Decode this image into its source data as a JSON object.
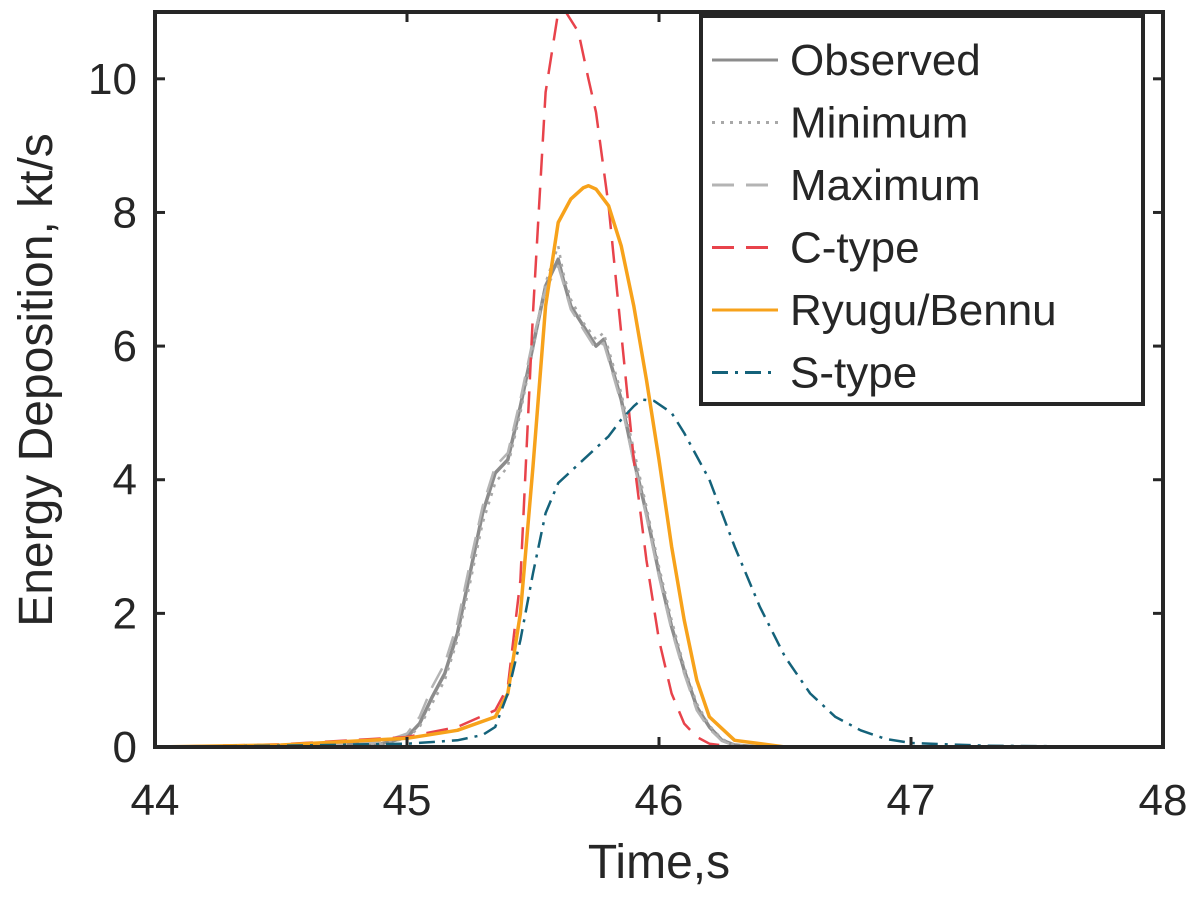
{
  "chart_data": {
    "type": "line",
    "title": "",
    "xlabel": "Time,s",
    "ylabel": "Energy Deposition, kt/s",
    "xlim": [
      44,
      48
    ],
    "ylim": [
      0,
      11
    ],
    "xticks": [
      44,
      45,
      46,
      47,
      48
    ],
    "yticks": [
      0,
      2,
      4,
      6,
      8,
      10
    ],
    "xtick_labels": [
      "44",
      "45",
      "46",
      "47",
      "48"
    ],
    "ytick_labels": [
      "0",
      "2",
      "4",
      "6",
      "8",
      "10"
    ],
    "grid": false,
    "legend_position": "top-right",
    "series": [
      {
        "name": "Observed",
        "color": "#8c8c8c",
        "style": "solid",
        "x": [
          44.0,
          44.5,
          44.8,
          44.9,
          45.0,
          45.05,
          45.1,
          45.15,
          45.2,
          45.25,
          45.3,
          45.35,
          45.4,
          45.45,
          45.5,
          45.55,
          45.6,
          45.62,
          45.65,
          45.7,
          45.75,
          45.78,
          45.8,
          45.85,
          45.9,
          45.95,
          46.0,
          46.05,
          46.1,
          46.15,
          46.2,
          46.25,
          46.3,
          46.4,
          48.0
        ],
        "y": [
          0.0,
          0.0,
          0.05,
          0.05,
          0.15,
          0.35,
          0.75,
          1.1,
          1.7,
          2.6,
          3.5,
          4.1,
          4.3,
          5.1,
          6.0,
          6.9,
          7.3,
          7.0,
          6.6,
          6.3,
          6.0,
          6.1,
          5.85,
          5.2,
          4.3,
          3.5,
          2.6,
          1.8,
          1.15,
          0.6,
          0.3,
          0.1,
          0.03,
          0.0,
          0.0
        ]
      },
      {
        "name": "Minimum",
        "color": "#a8a8a8",
        "style": "dotted",
        "x": [
          44.0,
          44.5,
          44.8,
          44.9,
          45.0,
          45.05,
          45.1,
          45.15,
          45.2,
          45.25,
          45.3,
          45.35,
          45.4,
          45.45,
          45.5,
          45.55,
          45.6,
          45.62,
          45.65,
          45.7,
          45.75,
          45.78,
          45.8,
          45.85,
          45.9,
          45.95,
          46.0,
          46.05,
          46.1,
          46.15,
          46.2,
          46.25,
          46.3,
          46.4,
          48.0
        ],
        "y": [
          0.0,
          0.0,
          0.04,
          0.05,
          0.13,
          0.3,
          0.65,
          1.0,
          1.6,
          2.45,
          3.35,
          3.95,
          4.2,
          5.0,
          5.95,
          6.95,
          7.5,
          7.1,
          6.7,
          6.35,
          6.1,
          6.2,
          5.95,
          5.3,
          4.45,
          3.6,
          2.7,
          1.9,
          1.2,
          0.65,
          0.32,
          0.12,
          0.03,
          0.0,
          0.0
        ]
      },
      {
        "name": "Maximum",
        "color": "#b4b4b4",
        "style": "dashed",
        "x": [
          44.0,
          44.5,
          44.8,
          44.9,
          45.0,
          45.05,
          45.1,
          45.15,
          45.2,
          45.25,
          45.3,
          45.35,
          45.4,
          45.45,
          45.5,
          45.55,
          45.6,
          45.62,
          45.65,
          45.7,
          45.75,
          45.78,
          45.8,
          45.85,
          45.9,
          45.95,
          46.0,
          46.05,
          46.1,
          46.15,
          46.2,
          46.25,
          46.3,
          46.4,
          48.0
        ],
        "y": [
          0.0,
          0.0,
          0.06,
          0.07,
          0.2,
          0.45,
          0.9,
          1.25,
          1.85,
          2.75,
          3.6,
          4.2,
          4.4,
          5.2,
          6.1,
          6.85,
          7.2,
          6.95,
          6.55,
          6.25,
          5.95,
          6.05,
          5.8,
          5.15,
          4.25,
          3.45,
          2.55,
          1.75,
          1.1,
          0.55,
          0.27,
          0.09,
          0.02,
          0.0,
          0.0
        ]
      },
      {
        "name": "C-type",
        "color": "#e8434b",
        "style": "dashed",
        "x": [
          44.0,
          44.5,
          45.0,
          45.2,
          45.35,
          45.4,
          45.45,
          45.5,
          45.55,
          45.6,
          45.63,
          45.68,
          45.72,
          45.75,
          45.8,
          45.85,
          45.9,
          45.95,
          46.0,
          46.05,
          46.1,
          46.15,
          46.2,
          46.3,
          48.0
        ],
        "y": [
          0.0,
          0.04,
          0.15,
          0.3,
          0.55,
          0.9,
          2.5,
          6.5,
          9.8,
          11.0,
          11.0,
          10.7,
          10.0,
          9.5,
          8.1,
          6.2,
          4.3,
          2.8,
          1.6,
          0.8,
          0.35,
          0.15,
          0.05,
          0.0,
          0.0
        ]
      },
      {
        "name": "Ryugu/Bennu",
        "color": "#f7a21b",
        "style": "solid",
        "x": [
          44.0,
          44.5,
          45.0,
          45.2,
          45.35,
          45.4,
          45.45,
          45.5,
          45.55,
          45.6,
          45.65,
          45.7,
          45.72,
          45.75,
          45.8,
          45.85,
          45.9,
          45.95,
          46.0,
          46.05,
          46.1,
          46.15,
          46.2,
          46.3,
          46.5,
          48.0
        ],
        "y": [
          0.0,
          0.03,
          0.13,
          0.25,
          0.45,
          0.8,
          2.0,
          4.2,
          6.6,
          7.85,
          8.2,
          8.37,
          8.4,
          8.35,
          8.1,
          7.5,
          6.6,
          5.5,
          4.3,
          3.0,
          1.9,
          1.0,
          0.45,
          0.1,
          0.0,
          0.0
        ]
      },
      {
        "name": "S-type",
        "color": "#14627a",
        "style": "dashdot",
        "x": [
          44.0,
          44.5,
          45.0,
          45.2,
          45.3,
          45.35,
          45.4,
          45.45,
          45.5,
          45.55,
          45.6,
          45.7,
          45.8,
          45.85,
          45.9,
          45.93,
          45.98,
          46.05,
          46.1,
          46.2,
          46.3,
          46.4,
          46.5,
          46.6,
          46.7,
          46.8,
          46.9,
          47.0,
          47.3,
          48.0
        ],
        "y": [
          0.0,
          0.02,
          0.05,
          0.1,
          0.18,
          0.3,
          0.8,
          1.6,
          2.6,
          3.5,
          3.95,
          4.3,
          4.65,
          4.9,
          5.1,
          5.2,
          5.18,
          5.0,
          4.7,
          4.0,
          3.0,
          2.1,
          1.35,
          0.8,
          0.45,
          0.25,
          0.12,
          0.06,
          0.02,
          0.0
        ]
      }
    ]
  }
}
